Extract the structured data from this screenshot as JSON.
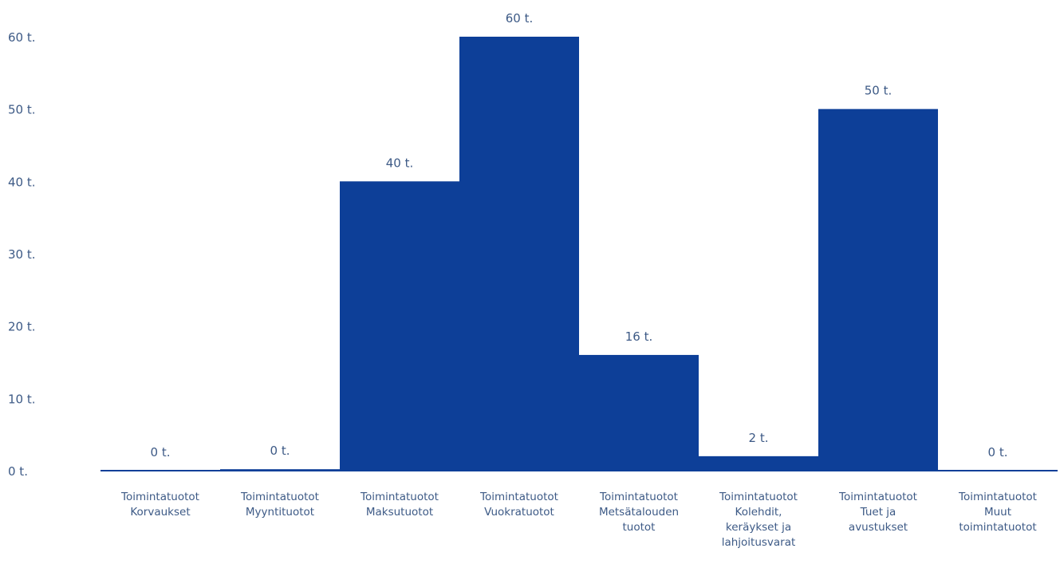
{
  "chart_data": {
    "type": "bar",
    "title": "",
    "xlabel": "",
    "ylabel": "",
    "ylim": [
      0,
      60
    ],
    "y_ticks": [
      0,
      10,
      20,
      30,
      40,
      50,
      60
    ],
    "y_tick_labels": [
      "0 t.",
      "10 t.",
      "20 t.",
      "30 t.",
      "40 t.",
      "50 t.",
      "60 t."
    ],
    "grid": false,
    "legend": "none",
    "bar_color": "#0d3f98",
    "text_color": "#3d5a86",
    "categories": [
      [
        "Toimintatuotot",
        "Korvaukset"
      ],
      [
        "Toimintatuotot",
        "Myyntituotot"
      ],
      [
        "Toimintatuotot",
        "Maksutuotot"
      ],
      [
        "Toimintatuotot",
        "Vuokratuotot"
      ],
      [
        "Toimintatuotot",
        "Metsätalouden",
        "tuotot"
      ],
      [
        "Toimintatuotot",
        "Kolehdit,",
        "keräykset ja",
        "lahjoitusvarat"
      ],
      [
        "Toimintatuotot",
        "Tuet ja",
        "avustukset"
      ],
      [
        "Toimintatuotot",
        "Muut",
        "toimintatuotot"
      ]
    ],
    "values": [
      0,
      0.2,
      40,
      60,
      16,
      2,
      50,
      0
    ],
    "value_labels": [
      "0 t.",
      "0 t.",
      "40 t.",
      "60 t.",
      "16 t.",
      "2 t.",
      "50 t.",
      "0 t."
    ]
  }
}
